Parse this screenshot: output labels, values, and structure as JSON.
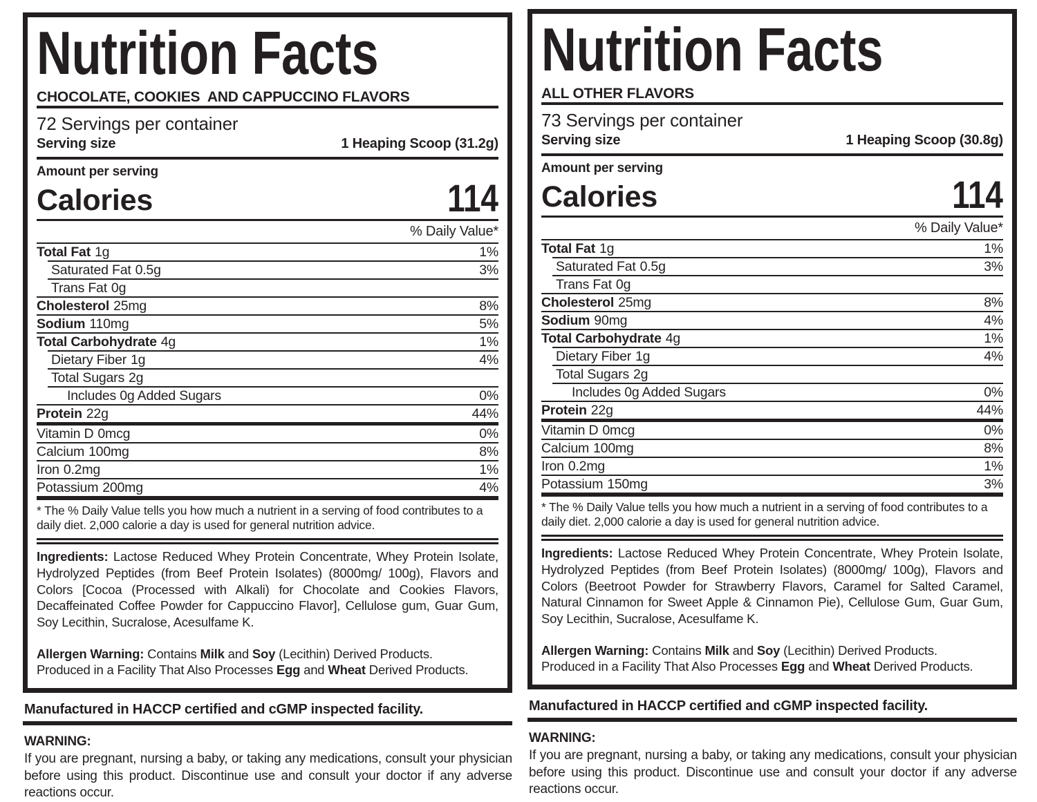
{
  "ink_color": "#231f20",
  "background_color": "#ffffff",
  "left": {
    "title": "Nutrition Facts",
    "flavor": "CHOCOLATE, COOKIES  AND CAPPUCCINO FLAVORS",
    "servings": "72 Servings per container",
    "serving_size_label": "Serving size",
    "serving_size_value": "1 Heaping Scoop (31.2g)",
    "amount_per_serving": "Amount per serving",
    "calories_label": "Calories",
    "calories_value": "114",
    "dv_header": "% Daily Value*",
    "rows": [
      {
        "name": "Total Fat",
        "amount": "1g",
        "dv": "1%"
      },
      {
        "name": "Saturated Fat",
        "amount": "0.5g",
        "dv": "3%"
      },
      {
        "name": "Trans Fat",
        "amount": "0g",
        "dv": ""
      },
      {
        "name": "Cholesterol",
        "amount": "25mg",
        "dv": "8%"
      },
      {
        "name": "Sodium",
        "amount": "110mg",
        "dv": "5%"
      },
      {
        "name": "Total Carbohydrate",
        "amount": "4g",
        "dv": "1%"
      },
      {
        "name": "Dietary Fiber",
        "amount": "1g",
        "dv": "4%"
      },
      {
        "name": "Total Sugars",
        "amount": "2g",
        "dv": ""
      },
      {
        "name": "Includes 0g Added Sugars",
        "amount": "",
        "dv": "0%"
      },
      {
        "name": "Protein",
        "amount": "22g",
        "dv": "44%"
      },
      {
        "name": "Vitamin D",
        "amount": "0mcg",
        "dv": "0%"
      },
      {
        "name": "Calcium",
        "amount": "100mg",
        "dv": "8%"
      },
      {
        "name": "Iron",
        "amount": "0.2mg",
        "dv": "1%"
      },
      {
        "name": "Potassium",
        "amount": "200mg",
        "dv": "4%"
      }
    ],
    "footnote": "* The % Daily Value tells you how much a nutrient in a serving of food contributes to a daily diet. 2,000 calorie a day is used for general nutrition advice.",
    "ingredients_lead": "Ingredients:",
    "ingredients_body": " Lactose Reduced Whey Protein Concentrate, Whey Protein Isolate, Hydrolyzed Peptides (from Beef Protein Isolates) (8000mg/ 100g), Flavors and Colors [Cocoa (Processed with Alkali) for Chocolate and Cookies Flavors, Decaffeinated Coffee Powder for Cappuccino Flavor], Cellulose gum, Guar Gum, Soy Lecithin, Sucralose, Acesulfame K.",
    "allergen": {
      "lead": "Allergen Warning:",
      "t1": " Contains ",
      "milk": "Milk",
      "t2": " and ",
      "soy": "Soy",
      "t3": " (Lecithin) Derived Products.",
      "t4": "Produced in a Facility That Also Processes ",
      "egg": "Egg",
      "t5": " and ",
      "wheat": "Wheat",
      "t6": " Derived Products."
    },
    "manufactured": "Manufactured in HACCP certified and cGMP inspected facility.",
    "warning_title": "WARNING:",
    "warning_text": "If you are pregnant, nursing a baby, or taking any medications, consult your physician before using this product. Discontinue use and consult your doctor if any adverse reactions occur."
  },
  "right": {
    "title": "Nutrition Facts",
    "flavor": "ALL OTHER FLAVORS",
    "servings": "73 Servings per container",
    "serving_size_label": "Serving size",
    "serving_size_value": "1 Heaping Scoop (30.8g)",
    "amount_per_serving": "Amount per serving",
    "calories_label": "Calories",
    "calories_value": "114",
    "dv_header": "% Daily Value*",
    "rows": [
      {
        "name": "Total Fat",
        "amount": "1g",
        "dv": "1%"
      },
      {
        "name": "Saturated Fat",
        "amount": "0.5g",
        "dv": "3%"
      },
      {
        "name": "Trans Fat",
        "amount": "0g",
        "dv": ""
      },
      {
        "name": "Cholesterol",
        "amount": "25mg",
        "dv": "8%"
      },
      {
        "name": "Sodium",
        "amount": "90mg",
        "dv": "4%"
      },
      {
        "name": "Total Carbohydrate",
        "amount": "4g",
        "dv": "1%"
      },
      {
        "name": "Dietary Fiber",
        "amount": "1g",
        "dv": "4%"
      },
      {
        "name": "Total Sugars",
        "amount": "2g",
        "dv": ""
      },
      {
        "name": "Includes 0g Added Sugars",
        "amount": "",
        "dv": "0%"
      },
      {
        "name": "Protein",
        "amount": "22g",
        "dv": "44%"
      },
      {
        "name": "Vitamin D",
        "amount": "0mcg",
        "dv": "0%"
      },
      {
        "name": "Calcium",
        "amount": "100mg",
        "dv": "8%"
      },
      {
        "name": "Iron",
        "amount": "0.2mg",
        "dv": "1%"
      },
      {
        "name": "Potassium",
        "amount": "150mg",
        "dv": "3%"
      }
    ],
    "footnote": "* The % Daily Value tells you how much a nutrient in a serving of food contributes to a daily diet. 2,000 calorie a day is used for general nutrition advice.",
    "ingredients_lead": "Ingredients:",
    "ingredients_body": " Lactose Reduced Whey Protein Concentrate, Whey Protein Isolate, Hydrolyzed Peptides (from Beef Protein Isolates) (8000mg/ 100g), Flavors and Colors (Beetroot Powder for Strawberry Flavors, Caramel for Salted Caramel, Natural Cinnamon for Sweet Apple & Cinnamon Pie), Cellulose Gum, Guar Gum, Soy Lecithin, Sucralose, Acesulfame K.",
    "allergen": {
      "lead": "Allergen Warning:",
      "t1": " Contains ",
      "milk": "Milk",
      "t2": " and ",
      "soy": "Soy",
      "t3": " (Lecithin) Derived Products.",
      "t4": "Produced in a Facility That Also Processes ",
      "egg": "Egg",
      "t5": " and ",
      "wheat": "Wheat",
      "t6": " Derived Products."
    },
    "manufactured": "Manufactured in HACCP certified and cGMP inspected facility.",
    "warning_title": "WARNING:",
    "warning_text": "If you are pregnant, nursing a baby, or taking any medications, consult your physician before using this product. Discontinue use and consult your doctor if any adverse reactions occur."
  }
}
